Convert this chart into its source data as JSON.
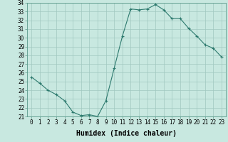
{
  "x": [
    0,
    1,
    2,
    3,
    4,
    5,
    6,
    7,
    8,
    9,
    10,
    11,
    12,
    13,
    14,
    15,
    16,
    17,
    18,
    19,
    20,
    21,
    22,
    23
  ],
  "y": [
    25.5,
    24.8,
    24.0,
    23.5,
    22.8,
    21.5,
    21.1,
    21.2,
    21.0,
    22.8,
    26.5,
    30.2,
    33.3,
    33.2,
    33.3,
    33.8,
    33.2,
    32.2,
    32.2,
    31.1,
    30.2,
    29.2,
    28.8,
    27.8
  ],
  "line_color": "#2d7a6e",
  "marker": "+",
  "markersize": 3,
  "linewidth": 0.8,
  "xlabel": "Humidex (Indice chaleur)",
  "ylim": [
    21,
    34
  ],
  "xlim": [
    -0.5,
    23.5
  ],
  "yticks": [
    21,
    22,
    23,
    24,
    25,
    26,
    27,
    28,
    29,
    30,
    31,
    32,
    33,
    34
  ],
  "xticks": [
    0,
    1,
    2,
    3,
    4,
    5,
    6,
    7,
    8,
    9,
    10,
    11,
    12,
    13,
    14,
    15,
    16,
    17,
    18,
    19,
    20,
    21,
    22,
    23
  ],
  "bg_color": "#c8e8e0",
  "grid_color": "#a0c8bf",
  "tick_fontsize": 5.5,
  "xlabel_fontsize": 7,
  "xlabel_fontweight": "bold"
}
